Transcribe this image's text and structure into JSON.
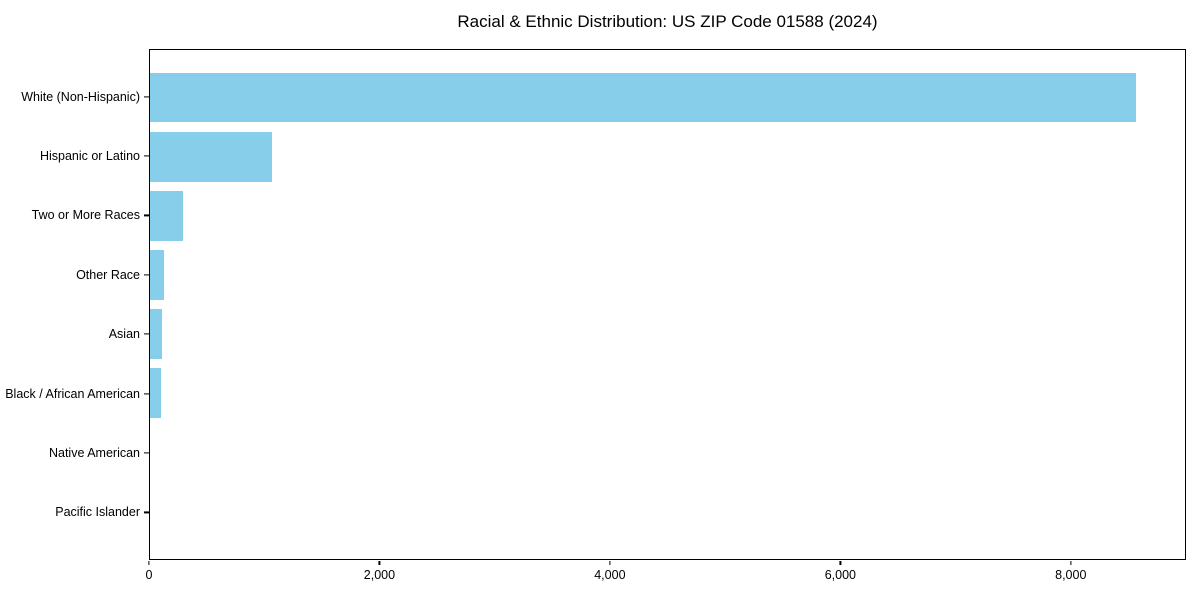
{
  "chart_data": {
    "type": "bar",
    "orientation": "horizontal",
    "title": "Racial & Ethnic Distribution: US ZIP Code 01588 (2024)",
    "categories": [
      "White (Non-Hispanic)",
      "Hispanic or Latino",
      "Two or More Races",
      "Other Race",
      "Asian",
      "Black / African American",
      "Native American",
      "Pacific Islander"
    ],
    "values": [
      8570,
      1060,
      290,
      120,
      105,
      95,
      0,
      0
    ],
    "bar_color": "#87CEEB",
    "background_color": "#ffffff",
    "spine_color": "#000000",
    "xlabel": "",
    "ylabel": "",
    "xlim": [
      0,
      9000
    ],
    "xticks": {
      "values": [
        0,
        2000,
        4000,
        6000,
        8000
      ],
      "labels": [
        "0",
        "2,000",
        "4,000",
        "6,000",
        "8,000"
      ]
    },
    "grid": false,
    "legend": null
  }
}
